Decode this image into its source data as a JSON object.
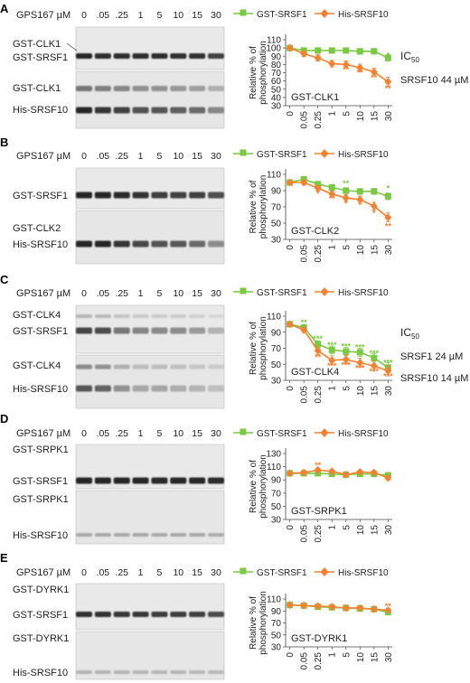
{
  "figure": {
    "dose_unit_label": "GPS167 µM",
    "doses": [
      "0",
      ".05",
      ".25",
      "1",
      "5",
      "10",
      "15",
      "30"
    ],
    "ylabel_line1": "Relative % of",
    "ylabel_line2": "phosphorylation",
    "colors": {
      "srsf1": "#7ac943",
      "srsf10": "#f28232",
      "band": "#1a1a1a"
    }
  },
  "panels": [
    {
      "letter": "A",
      "show_dose_header": true,
      "blot_labels": [
        {
          "text": "GST-CLK1",
          "leader": true
        },
        {
          "text": "GST-SRSF1"
        },
        {
          "text": "GST-CLK1"
        },
        {
          "text": "His-SRSF10"
        }
      ],
      "ic50": {
        "title": "IC",
        "subscript": "50",
        "lines": [
          "SRSF10 44 µM"
        ]
      },
      "chart_data": {
        "type": "line",
        "title": "GST-CLK1",
        "x": [
          "0",
          "0.05",
          "0.25",
          "1",
          "5",
          "10",
          "15",
          "30"
        ],
        "ylim": [
          30,
          110
        ],
        "yticks": [
          30,
          40,
          50,
          60,
          70,
          80,
          90,
          100,
          110
        ],
        "ylabel": "Relative % of phosphorylation",
        "legend": "top",
        "series": [
          {
            "name": "GST-SRSF1",
            "values": [
              100,
              97,
              97,
              97,
              97,
              96,
              96,
              88
            ],
            "color": "#7ac943",
            "marker": "square"
          },
          {
            "name": "His-SRSF10",
            "values": [
              100,
              93,
              88,
              81,
              80,
              76,
              71,
              59
            ],
            "color": "#f28232",
            "marker": "diamond"
          }
        ],
        "annotations": [
          {
            "x": "30",
            "y": 91,
            "text": "*",
            "color": "#7ac943"
          },
          {
            "x": "5",
            "y": 74,
            "text": "**",
            "color": "#f28232"
          },
          {
            "x": "10",
            "y": 70,
            "text": "**",
            "color": "#f28232"
          },
          {
            "x": "15",
            "y": 64,
            "text": "**",
            "color": "#f28232"
          },
          {
            "x": "30",
            "y": 51,
            "text": "**",
            "color": "#f28232"
          }
        ]
      }
    },
    {
      "letter": "B",
      "show_dose_header": true,
      "blot_labels": [
        {
          "text": "GST-SRSF1"
        },
        {
          "text": "GST-CLK2"
        },
        {
          "text": "His-SRSF10"
        }
      ],
      "chart_data": {
        "type": "line",
        "title": "GST-CLK2",
        "x": [
          "0",
          "0.05",
          "0.25",
          "1",
          "5",
          "10",
          "15",
          "30"
        ],
        "ylim": [
          30,
          110
        ],
        "yticks": [
          30,
          50,
          70,
          90,
          110
        ],
        "ylabel": "Relative % of phosphorylation",
        "legend": "top",
        "series": [
          {
            "name": "GST-SRSF1",
            "values": [
              100,
              104,
              98,
              94,
              90,
              89,
              89,
              83
            ],
            "color": "#7ac943",
            "marker": "square"
          },
          {
            "name": "His-SRSF10",
            "values": [
              100,
              100,
              93,
              86,
              81,
              79,
              71,
              57
            ],
            "color": "#f28232",
            "marker": "diamond"
          }
        ],
        "annotations": [
          {
            "x": "5",
            "y": 99,
            "text": "**",
            "color": "#7ac943"
          },
          {
            "x": "30",
            "y": 93,
            "text": "*",
            "color": "#7ac943"
          },
          {
            "x": "0.25",
            "y": 86,
            "text": "*",
            "color": "#f28232"
          },
          {
            "x": "1",
            "y": 80,
            "text": "**",
            "color": "#f28232"
          },
          {
            "x": "5",
            "y": 74,
            "text": "*",
            "color": "#f28232"
          },
          {
            "x": "10",
            "y": 72,
            "text": "*",
            "color": "#f28232"
          },
          {
            "x": "15",
            "y": 62,
            "text": "*",
            "color": "#f28232"
          },
          {
            "x": "30",
            "y": 46,
            "text": "**",
            "color": "#f28232"
          }
        ]
      }
    },
    {
      "letter": "C",
      "show_dose_header": true,
      "blot_labels": [
        {
          "text": "GST-CLK4"
        },
        {
          "text": "GST-SRSF1"
        },
        {
          "text": "GST-CLK4"
        },
        {
          "text": "His-SRSF10"
        }
      ],
      "ic50": {
        "title": "IC",
        "subscript": "50",
        "lines": [
          "SRSF1 24 µM",
          "SRSF10 14 µM"
        ]
      },
      "chart_data": {
        "type": "line",
        "title": "GST-CLK4",
        "x": [
          "0",
          "0.05",
          "0.25",
          "1",
          "5",
          "10",
          "15",
          "30"
        ],
        "ylim": [
          30,
          110
        ],
        "yticks": [
          30,
          50,
          70,
          90,
          110
        ],
        "ylabel": "Relative % of phosphorylation",
        "legend": "top",
        "series": [
          {
            "name": "GST-SRSF1",
            "values": [
              100,
              96,
              75,
              68,
              66,
              65,
              58,
              46
            ],
            "color": "#7ac943",
            "marker": "square"
          },
          {
            "name": "His-SRSF10",
            "values": [
              100,
              93,
              67,
              55,
              56,
              52,
              48,
              42
            ],
            "color": "#f28232",
            "marker": "diamond"
          }
        ],
        "annotations": [
          {
            "x": "0.05",
            "y": 102,
            "text": "**",
            "color": "#7ac943"
          },
          {
            "x": "0.25",
            "y": 82,
            "text": "***",
            "color": "#7ac943"
          },
          {
            "x": "1",
            "y": 74,
            "text": "***",
            "color": "#7ac943"
          },
          {
            "x": "5",
            "y": 72,
            "text": "***",
            "color": "#7ac943"
          },
          {
            "x": "10",
            "y": 71,
            "text": "***",
            "color": "#7ac943"
          },
          {
            "x": "15",
            "y": 64,
            "text": "***",
            "color": "#7ac943"
          },
          {
            "x": "30",
            "y": 52,
            "text": "***",
            "color": "#7ac943"
          },
          {
            "x": "0.25",
            "y": 59,
            "text": "**",
            "color": "#f28232"
          },
          {
            "x": "1",
            "y": 48,
            "text": "***",
            "color": "#f28232"
          },
          {
            "x": "5",
            "y": 49,
            "text": "***",
            "color": "#f28232"
          },
          {
            "x": "10",
            "y": 45,
            "text": "***",
            "color": "#f28232"
          },
          {
            "x": "15",
            "y": 41,
            "text": "***",
            "color": "#f28232"
          },
          {
            "x": "30",
            "y": 35,
            "text": "***",
            "color": "#f28232"
          }
        ]
      }
    },
    {
      "letter": "D",
      "show_dose_header": true,
      "blot_labels": [
        {
          "text": "GST-SRPK1"
        },
        {
          "text": "GST-SRSF1"
        },
        {
          "text": "GST-SRPK1"
        },
        {
          "text": "His-SRSF10"
        }
      ],
      "chart_data": {
        "type": "line",
        "title": "GST-SRPK1",
        "x": [
          "0",
          "0.05",
          "0.25",
          "1",
          "5",
          "10",
          "15",
          "30"
        ],
        "ylim": [
          30,
          130
        ],
        "yticks": [
          30,
          50,
          70,
          90,
          110,
          130
        ],
        "ylabel": "Relative % of phosphorylation",
        "legend": "top",
        "series": [
          {
            "name": "GST-SRSF1",
            "values": [
              100,
              100,
              100,
              99,
              98,
              99,
              99,
              97
            ],
            "color": "#7ac943",
            "marker": "square"
          },
          {
            "name": "His-SRSF10",
            "values": [
              100,
              101,
              105,
              103,
              98,
              102,
              101,
              93
            ],
            "color": "#f28232",
            "marker": "diamond"
          }
        ],
        "annotations": [
          {
            "x": "0.25",
            "y": 112,
            "text": "**",
            "color": "#f28232"
          }
        ]
      }
    },
    {
      "letter": "E",
      "show_dose_header": true,
      "blot_labels": [
        {
          "text": "GST-DYRK1"
        },
        {
          "text": "GST-SRSF1"
        },
        {
          "text": "GST-DYRK1"
        },
        {
          "text": "His-SRSF10"
        }
      ],
      "chart_data": {
        "type": "line",
        "title": "GST-DYRK1",
        "x": [
          "0",
          "0.05",
          "0.25",
          "1",
          "5",
          "10",
          "15",
          "30"
        ],
        "ylim": [
          30,
          110
        ],
        "yticks": [
          30,
          50,
          70,
          90,
          110
        ],
        "ylabel": "Relative % of phosphorylation",
        "legend": "top",
        "series": [
          {
            "name": "GST-SRSF1",
            "values": [
              100,
              99,
              97,
              96,
              95,
              94,
              93,
              88
            ],
            "color": "#7ac943",
            "marker": "square"
          },
          {
            "name": "His-SRSF10",
            "values": [
              100,
              99,
              98,
              97,
              95,
              95,
              93,
              91
            ],
            "color": "#f28232",
            "marker": "diamond"
          }
        ],
        "annotations": [
          {
            "x": "30",
            "y": 98,
            "text": "**",
            "color": "#f28232"
          },
          {
            "x": "30",
            "y": 83,
            "text": "*",
            "color": "#7ac943"
          }
        ]
      }
    }
  ]
}
